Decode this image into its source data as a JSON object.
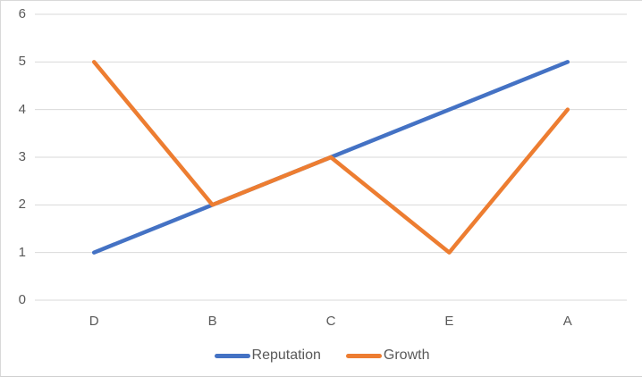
{
  "chart_data": {
    "type": "line",
    "title": "",
    "xlabel": "",
    "ylabel": "",
    "categories": [
      "D",
      "B",
      "C",
      "E",
      "A"
    ],
    "series": [
      {
        "name": "Reputation",
        "color": "#4472C4",
        "values": [
          1,
          2,
          3,
          4,
          5
        ]
      },
      {
        "name": "Growth",
        "color": "#ED7D31",
        "values": [
          5,
          2,
          3,
          1,
          4
        ]
      }
    ],
    "ylim": [
      0,
      6
    ],
    "yticks": [
      "0",
      "1",
      "2",
      "3",
      "4",
      "5",
      "6"
    ],
    "grid": true,
    "legend_position": "bottom-center"
  },
  "colors": {
    "gridline": "#D9D9D9",
    "axis_text": "#595959",
    "frame_border": "#D9D9D9",
    "background": "#FFFFFF"
  }
}
